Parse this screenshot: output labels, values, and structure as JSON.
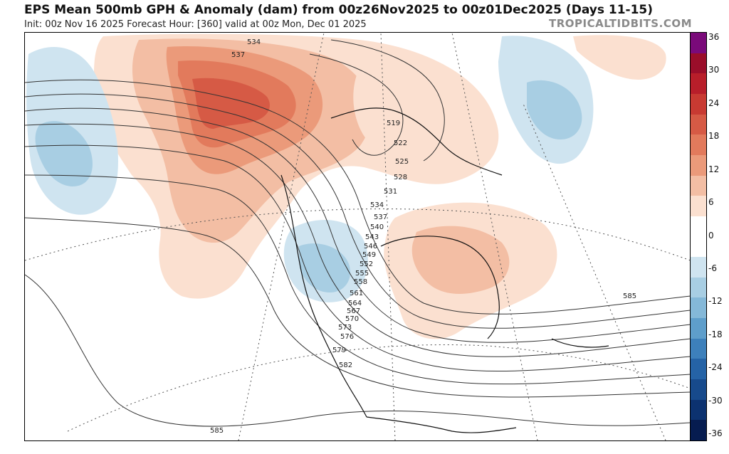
{
  "header": {
    "title": "EPS Mean 500mb GPH & Anomaly (dam) from 00z26Nov2025 to 00z01Dec2025 (Days 11-15)",
    "subtitle": "Init: 00z Nov 16 2025   Forecast Hour: [360]   valid at 00z Mon, Dec 01 2025",
    "brand": "TROPICALTIDBITS.COM"
  },
  "colorbar": {
    "labels": [
      "36",
      "30",
      "24",
      "18",
      "12",
      "6",
      "0",
      "-6",
      "-12",
      "-18",
      "-24",
      "-30",
      "-36"
    ],
    "colors": [
      "#7a0a7a",
      "#9a0e2a",
      "#b81e2a",
      "#c83a32",
      "#d65a45",
      "#e27a5c",
      "#eb9a7a",
      "#f3bea4",
      "#fbe0d0",
      "#ffffff",
      "#ffffff",
      "#cfe4f0",
      "#a8cee3",
      "#84b8d8",
      "#5e9ecb",
      "#3d80bb",
      "#2563a6",
      "#174a8c",
      "#0c3270",
      "#061c50"
    ]
  },
  "contour_labels": [
    "534",
    "537",
    "519",
    "522",
    "525",
    "528",
    "531",
    "534",
    "537",
    "540",
    "543",
    "546",
    "549",
    "552",
    "555",
    "558",
    "561",
    "564",
    "567",
    "570",
    "573",
    "576",
    "579",
    "582",
    "585",
    "585"
  ]
}
